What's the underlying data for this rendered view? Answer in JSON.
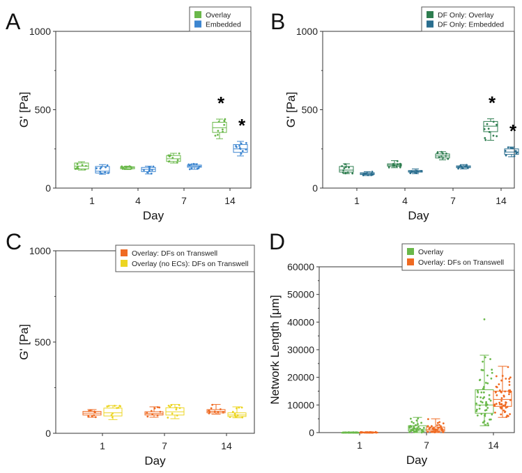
{
  "colors": {
    "green": "#6ab84a",
    "blue": "#3d86d0",
    "darkgreen": "#2e7d4f",
    "teal": "#2a6e8f",
    "orange": "#ef6a22",
    "yellow": "#ecd522"
  },
  "chart_data": [
    {
      "panel": "A",
      "type": "box",
      "xlabel": "Day",
      "ylabel": "G' [Pa]",
      "categories": [
        "1",
        "4",
        "7",
        "14"
      ],
      "ylim": [
        0,
        1000
      ],
      "yticks": [
        0,
        500,
        1000
      ],
      "series": [
        {
          "name": "Overlay",
          "color": "#6ab84a",
          "boxes": [
            {
              "min": 115,
              "q1": 122,
              "median": 140,
              "q3": 160,
              "max": 168
            },
            {
              "min": 118,
              "q1": 123,
              "median": 130,
              "q3": 136,
              "max": 140
            },
            {
              "min": 160,
              "q1": 170,
              "median": 187,
              "q3": 208,
              "max": 222
            },
            {
              "min": 315,
              "q1": 355,
              "median": 385,
              "q3": 420,
              "max": 440
            }
          ]
        },
        {
          "name": "Embedded",
          "color": "#3d86d0",
          "boxes": [
            {
              "min": 88,
              "q1": 96,
              "median": 108,
              "q3": 138,
              "max": 150
            },
            {
              "min": 90,
              "q1": 105,
              "median": 120,
              "q3": 132,
              "max": 140
            },
            {
              "min": 120,
              "q1": 133,
              "median": 140,
              "q3": 147,
              "max": 155
            },
            {
              "min": 205,
              "q1": 228,
              "median": 250,
              "q3": 278,
              "max": 298
            }
          ]
        }
      ],
      "significance": [
        {
          "category": "14",
          "series": "Overlay",
          "label": "*"
        },
        {
          "category": "14",
          "series": "Embedded",
          "label": "*"
        }
      ]
    },
    {
      "panel": "B",
      "type": "box",
      "xlabel": "Day",
      "ylabel": "G' [Pa]",
      "categories": [
        "1",
        "4",
        "7",
        "14"
      ],
      "ylim": [
        0,
        1000
      ],
      "yticks": [
        0,
        500,
        1000
      ],
      "series": [
        {
          "name": "DF Only: Overlay",
          "color": "#2e7d4f",
          "boxes": [
            {
              "min": 92,
              "q1": 102,
              "median": 115,
              "q3": 138,
              "max": 155
            },
            {
              "min": 130,
              "q1": 140,
              "median": 147,
              "q3": 155,
              "max": 175
            },
            {
              "min": 180,
              "q1": 192,
              "median": 205,
              "q3": 218,
              "max": 232
            },
            {
              "min": 305,
              "q1": 360,
              "median": 395,
              "q3": 425,
              "max": 442
            }
          ]
        },
        {
          "name": "DF Only: Embedded",
          "color": "#2a6e8f",
          "boxes": [
            {
              "min": 80,
              "q1": 86,
              "median": 92,
              "q3": 98,
              "max": 105
            },
            {
              "min": 92,
              "q1": 102,
              "median": 107,
              "q3": 112,
              "max": 122
            },
            {
              "min": 122,
              "q1": 130,
              "median": 136,
              "q3": 142,
              "max": 150
            },
            {
              "min": 200,
              "q1": 215,
              "median": 230,
              "q3": 250,
              "max": 262
            }
          ]
        }
      ],
      "significance": [
        {
          "category": "14",
          "series": "DF Only: Overlay",
          "label": "*"
        },
        {
          "category": "14",
          "series": "DF Only: Embedded",
          "label": "*"
        }
      ]
    },
    {
      "panel": "C",
      "type": "box",
      "xlabel": "Day",
      "ylabel": "G' [Pa]",
      "categories": [
        "1",
        "7",
        "14"
      ],
      "ylim": [
        0,
        1000
      ],
      "yticks": [
        0,
        500,
        1000
      ],
      "series": [
        {
          "name": "Overlay: DFs on Transwell",
          "color": "#ef6a22",
          "boxes": [
            {
              "min": 88,
              "q1": 100,
              "median": 110,
              "q3": 120,
              "max": 130
            },
            {
              "min": 88,
              "q1": 100,
              "median": 108,
              "q3": 118,
              "max": 145
            },
            {
              "min": 105,
              "q1": 112,
              "median": 120,
              "q3": 130,
              "max": 158
            }
          ]
        },
        {
          "name": "Overlay (no ECs): DFs on Transwell",
          "color": "#ecd522",
          "boxes": [
            {
              "min": 75,
              "q1": 95,
              "median": 112,
              "q3": 138,
              "max": 152
            },
            {
              "min": 80,
              "q1": 100,
              "median": 118,
              "q3": 140,
              "max": 158
            },
            {
              "min": 85,
              "q1": 92,
              "median": 100,
              "q3": 112,
              "max": 145
            }
          ]
        }
      ],
      "significance": []
    },
    {
      "panel": "D",
      "type": "box",
      "xlabel": "Day",
      "ylabel": "Network Length [μm]",
      "categories": [
        "1",
        "7",
        "14"
      ],
      "ylim": [
        0,
        60000
      ],
      "yticks": [
        0,
        10000,
        20000,
        30000,
        40000,
        50000,
        60000
      ],
      "series": [
        {
          "name": "Overlay",
          "color": "#6ab84a",
          "boxes": [
            {
              "min": 0,
              "q1": 0,
              "median": 20,
              "q3": 60,
              "max": 120
            },
            {
              "min": 0,
              "q1": 600,
              "median": 1200,
              "q3": 2500,
              "max": 5500
            },
            {
              "min": 2500,
              "q1": 7000,
              "median": 10000,
              "q3": 15500,
              "max": 28000
            }
          ],
          "outliers": [
            [
              2,
              41000
            ]
          ]
        },
        {
          "name": "Overlay: DFs on Transwell",
          "color": "#ef6a22",
          "boxes": [
            {
              "min": 0,
              "q1": 10,
              "median": 50,
              "q3": 120,
              "max": 250
            },
            {
              "min": 0,
              "q1": 500,
              "median": 1000,
              "q3": 2000,
              "max": 5000
            },
            {
              "min": 5500,
              "q1": 9500,
              "median": 12000,
              "q3": 15000,
              "max": 24000
            }
          ],
          "outliers": []
        }
      ],
      "significance": []
    }
  ]
}
